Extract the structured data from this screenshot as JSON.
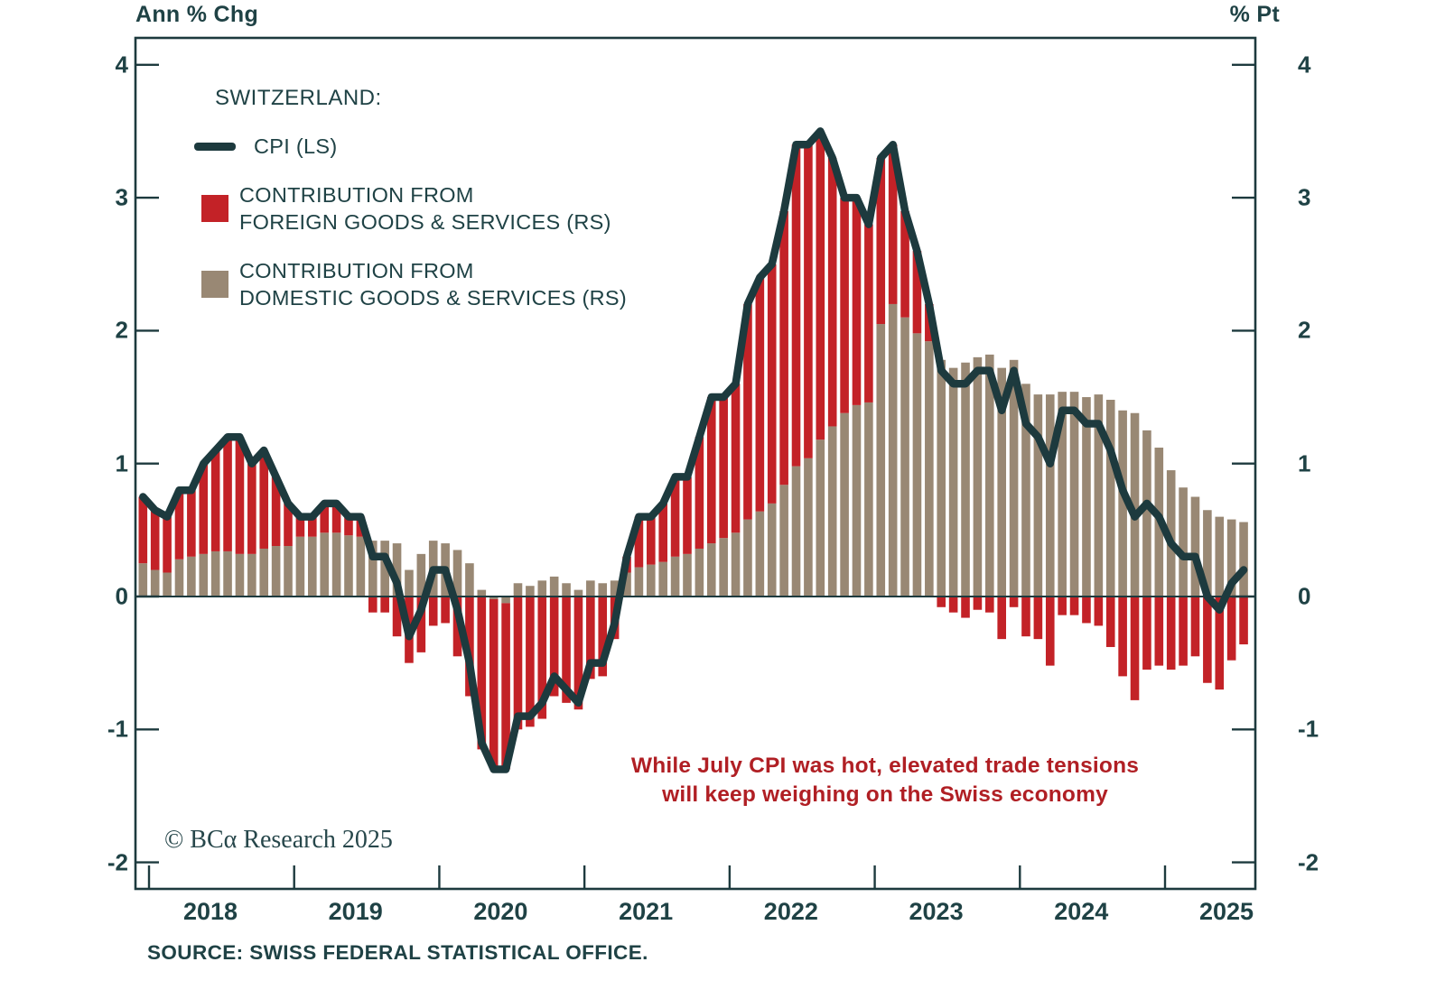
{
  "header": {
    "left_axis_title": "Ann % Chg",
    "right_axis_title": "% Pt"
  },
  "legend": {
    "title": "SWITZERLAND:",
    "items": [
      {
        "label": "CPI (LS)"
      },
      {
        "label_line1": "CONTRIBUTION FROM",
        "label_line2": "FOREIGN GOODS & SERVICES (RS)"
      },
      {
        "label_line1": "CONTRIBUTION FROM",
        "label_line2": "DOMESTIC GOODS & SERVICES (RS)"
      }
    ]
  },
  "annotation": {
    "line1": "While July CPI was hot, elevated trade tensions",
    "line2": "will keep weighing on the Swiss economy"
  },
  "footer": {
    "copyright": "© BCα Research 2025",
    "source": "SOURCE: SWISS FEDERAL STATISTICAL OFFICE."
  },
  "colors": {
    "line": "#1d3a3e",
    "foreign_bar": "#c32227",
    "domestic_bar": "#998874",
    "text": "#1f4245",
    "annotation": "#b01f24",
    "background": "#ffffff"
  },
  "chart_data": {
    "type": "bar",
    "subtype": "stacked-bars-with-line",
    "title": "",
    "xlabel": "",
    "ylabel_left": "Ann % Chg",
    "ylabel_right": "% Pt",
    "ylim": [
      -2,
      4
    ],
    "y_ticks": [
      4,
      3,
      2,
      1,
      0,
      -1,
      -2
    ],
    "x_year_labels": [
      "2018",
      "2019",
      "2020",
      "2021",
      "2022",
      "2023",
      "2024",
      "2025"
    ],
    "grid": false,
    "legend_position": "top-left-inside",
    "months_start": "2017-12",
    "months_end": "2025-07",
    "series": [
      {
        "name": "CPI (LS)",
        "type": "line",
        "axis": "left",
        "values": [
          0.75,
          0.65,
          0.6,
          0.8,
          0.8,
          1.0,
          1.1,
          1.2,
          1.2,
          1.0,
          1.1,
          0.9,
          0.7,
          0.6,
          0.6,
          0.7,
          0.7,
          0.6,
          0.6,
          0.3,
          0.3,
          0.1,
          -0.3,
          -0.1,
          0.2,
          0.2,
          -0.1,
          -0.5,
          -1.1,
          -1.3,
          -1.3,
          -0.9,
          -0.9,
          -0.8,
          -0.6,
          -0.7,
          -0.8,
          -0.5,
          -0.5,
          -0.2,
          0.3,
          0.6,
          0.6,
          0.7,
          0.9,
          0.9,
          1.2,
          1.5,
          1.5,
          1.6,
          2.2,
          2.4,
          2.5,
          2.9,
          3.4,
          3.4,
          3.5,
          3.3,
          3.0,
          3.0,
          2.8,
          3.3,
          3.4,
          2.9,
          2.6,
          2.2,
          1.7,
          1.6,
          1.6,
          1.7,
          1.7,
          1.4,
          1.7,
          1.3,
          1.2,
          1.0,
          1.4,
          1.4,
          1.3,
          1.3,
          1.1,
          0.8,
          0.6,
          0.7,
          0.6,
          0.4,
          0.3,
          0.3,
          0.0,
          -0.1,
          0.1,
          0.2
        ]
      },
      {
        "name": "CONTRIBUTION FROM DOMESTIC GOODS & SERVICES (RS)",
        "type": "bar",
        "axis": "right",
        "values": [
          0.25,
          0.2,
          0.18,
          0.28,
          0.3,
          0.32,
          0.34,
          0.34,
          0.32,
          0.32,
          0.36,
          0.38,
          0.38,
          0.45,
          0.45,
          0.48,
          0.48,
          0.46,
          0.45,
          0.42,
          0.42,
          0.4,
          0.2,
          0.32,
          0.42,
          0.4,
          0.35,
          0.25,
          0.05,
          -0.02,
          -0.05,
          0.1,
          0.08,
          0.12,
          0.15,
          0.1,
          0.05,
          0.12,
          0.1,
          0.12,
          0.18,
          0.22,
          0.24,
          0.26,
          0.3,
          0.32,
          0.36,
          0.4,
          0.44,
          0.48,
          0.58,
          0.64,
          0.7,
          0.84,
          0.98,
          1.04,
          1.18,
          1.28,
          1.38,
          1.44,
          1.46,
          2.05,
          2.2,
          2.1,
          1.98,
          1.92,
          1.78,
          1.72,
          1.76,
          1.8,
          1.82,
          1.72,
          1.78,
          1.6,
          1.52,
          1.52,
          1.54,
          1.54,
          1.5,
          1.52,
          1.48,
          1.4,
          1.38,
          1.25,
          1.12,
          0.95,
          0.82,
          0.75,
          0.65,
          0.6,
          0.58,
          0.56
        ]
      },
      {
        "name": "CONTRIBUTION FROM FOREIGN GOODS & SERVICES (RS)",
        "type": "bar",
        "axis": "right",
        "values": [
          0.5,
          0.45,
          0.42,
          0.52,
          0.5,
          0.68,
          0.76,
          0.86,
          0.88,
          0.68,
          0.74,
          0.52,
          0.32,
          0.15,
          0.15,
          0.22,
          0.22,
          0.14,
          0.15,
          -0.12,
          -0.12,
          -0.3,
          -0.5,
          -0.42,
          -0.22,
          -0.2,
          -0.45,
          -0.75,
          -1.15,
          -1.28,
          -1.25,
          -1.0,
          -0.98,
          -0.92,
          -0.75,
          -0.8,
          -0.85,
          -0.62,
          -0.6,
          -0.32,
          0.12,
          0.38,
          0.36,
          0.44,
          0.6,
          0.58,
          0.84,
          1.1,
          1.06,
          1.12,
          1.62,
          1.76,
          1.8,
          2.06,
          2.42,
          2.36,
          2.32,
          2.02,
          1.62,
          1.56,
          1.34,
          1.25,
          1.2,
          0.8,
          0.62,
          0.28,
          -0.08,
          -0.12,
          -0.16,
          -0.1,
          -0.12,
          -0.32,
          -0.08,
          -0.3,
          -0.32,
          -0.52,
          -0.14,
          -0.14,
          -0.2,
          -0.22,
          -0.38,
          -0.6,
          -0.78,
          -0.55,
          -0.52,
          -0.55,
          -0.52,
          -0.45,
          -0.65,
          -0.7,
          -0.48,
          -0.36
        ]
      }
    ]
  }
}
